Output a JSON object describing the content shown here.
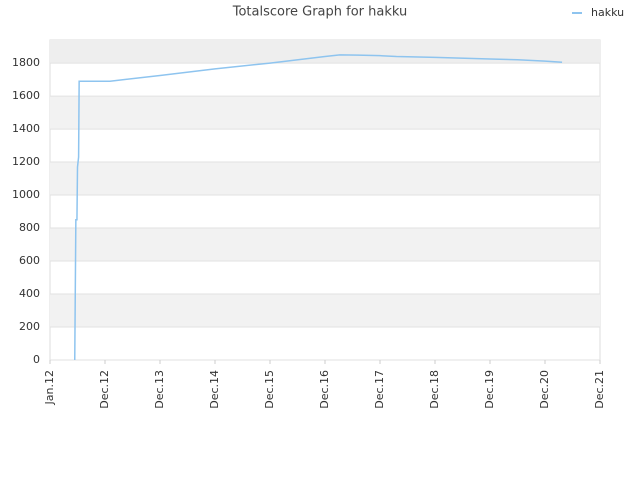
{
  "chart_data": {
    "type": "line",
    "title": "Totalscore Graph for hakku",
    "x": [
      0.45,
      0.47,
      0.49,
      0.5,
      0.52,
      0.53,
      1.09,
      2,
      3,
      4,
      5,
      5.27,
      5.6,
      6,
      6.3,
      7,
      8,
      8.5,
      9,
      9.31
    ],
    "series": [
      {
        "name": "hakku",
        "color": "#8ec4ef",
        "values": [
          0,
          850,
          850,
          1170,
          1230,
          1690,
          1690,
          1725,
          1765,
          1800,
          1840,
          1850,
          1848,
          1845,
          1840,
          1835,
          1825,
          1820,
          1812,
          1805
        ]
      }
    ],
    "xlim": [
      0,
      10
    ],
    "xticks": [
      {
        "value": 0,
        "label": "Jan.12"
      },
      {
        "value": 1,
        "label": "Dec.12"
      },
      {
        "value": 2,
        "label": "Dec.13"
      },
      {
        "value": 3,
        "label": "Dec.14"
      },
      {
        "value": 4,
        "label": "Dec.15"
      },
      {
        "value": 5,
        "label": "Dec.16"
      },
      {
        "value": 6,
        "label": "Dec.17"
      },
      {
        "value": 7,
        "label": "Dec.18"
      },
      {
        "value": 8,
        "label": "Dec.19"
      },
      {
        "value": 9,
        "label": "Dec.20"
      },
      {
        "value": 10,
        "label": "Dec.21"
      }
    ],
    "ylim": [
      0,
      1940
    ],
    "yticks": [
      0,
      200,
      400,
      600,
      800,
      1000,
      1200,
      1400,
      1600,
      1800
    ],
    "grid": true,
    "legend": "top-right"
  }
}
